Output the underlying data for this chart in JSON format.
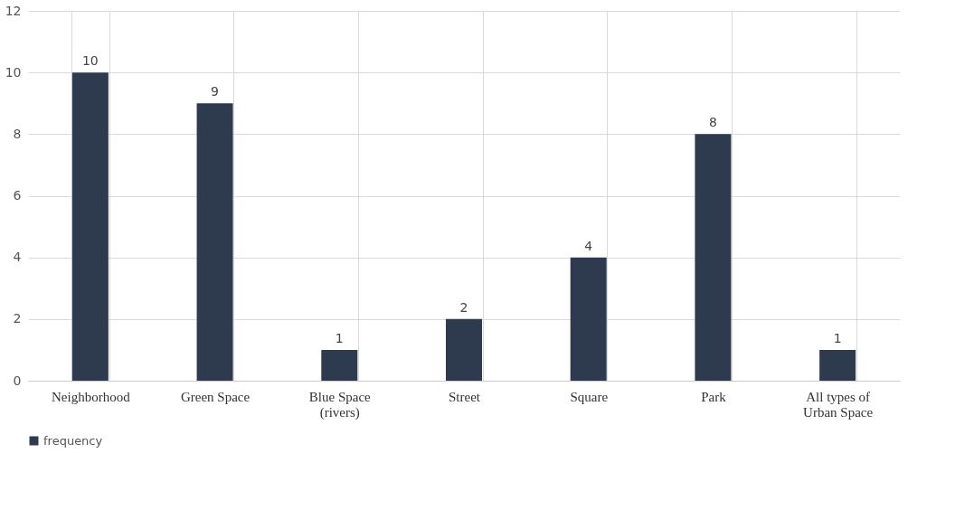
{
  "chart_data": {
    "type": "bar",
    "categories": [
      "Neighborhood",
      "Green Space",
      "Blue Space (rivers)",
      "Street",
      "Square",
      "Park",
      "All types of Urban Space"
    ],
    "series": [
      {
        "name": "frequency",
        "color": "#2e3a4e",
        "values": [
          10,
          9,
          1,
          2,
          4,
          8,
          1
        ]
      }
    ],
    "ylim": [
      0,
      12
    ],
    "yticks": [
      0,
      2,
      4,
      6,
      8,
      10,
      12
    ],
    "grid": true,
    "legend": "bottom",
    "data_labels": true
  }
}
